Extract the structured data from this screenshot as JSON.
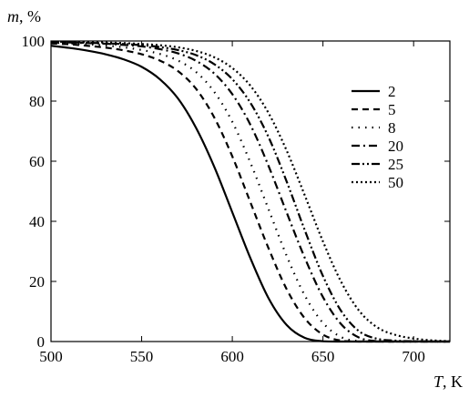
{
  "chart_data": {
    "type": "line",
    "title": "",
    "xlabel": "T, K",
    "ylabel": "m, %",
    "xlim": [
      500,
      720
    ],
    "ylim": [
      0,
      100
    ],
    "xticks": [
      500,
      550,
      600,
      650,
      700
    ],
    "yticks": [
      0,
      20,
      40,
      60,
      80,
      100
    ],
    "grid": false,
    "legend": "right",
    "x": [
      500,
      510,
      520,
      530,
      540,
      550,
      560,
      570,
      580,
      590,
      600,
      610,
      620,
      630,
      640,
      650,
      660,
      670,
      680,
      690,
      700,
      710,
      720
    ],
    "series": [
      {
        "name": "2",
        "style": "solid",
        "values": [
          98.4,
          97.7,
          96.8,
          95.6,
          93.9,
          91.4,
          87.3,
          80.9,
          71.1,
          58.2,
          43.0,
          27.7,
          14.4,
          5.5,
          1.2,
          0.1,
          0.0,
          0.0,
          0.0,
          0.0,
          0.0,
          0.0,
          0.0
        ]
      },
      {
        "name": "5",
        "style": "dashed",
        "values": [
          99.2,
          98.9,
          98.4,
          97.8,
          96.9,
          95.6,
          93.5,
          90.0,
          84.1,
          74.6,
          61.6,
          46.3,
          31.0,
          17.4,
          7.7,
          2.3,
          0.3,
          0.0,
          0.0,
          0.0,
          0.0,
          0.0,
          0.0
        ]
      },
      {
        "name": "8",
        "style": "dotted",
        "values": [
          99.4,
          99.2,
          98.9,
          98.5,
          97.9,
          97.0,
          95.7,
          93.5,
          89.7,
          83.1,
          73.1,
          59.5,
          44.0,
          28.5,
          15.3,
          6.2,
          1.5,
          0.1,
          0.0,
          0.0,
          0.0,
          0.0,
          0.0
        ]
      },
      {
        "name": "20",
        "style": "dashdot",
        "values": [
          99.6,
          99.5,
          99.3,
          99.1,
          98.7,
          98.2,
          97.3,
          95.9,
          93.4,
          89.2,
          82.3,
          72.1,
          58.4,
          42.9,
          27.8,
          14.8,
          5.8,
          1.3,
          0.1,
          0.0,
          0.0,
          0.0,
          0.0
        ]
      },
      {
        "name": "25",
        "style": "dashdotdot",
        "values": [
          99.6,
          99.5,
          99.4,
          99.2,
          99.0,
          98.6,
          98.0,
          97.0,
          95.3,
          92.3,
          87.3,
          79.4,
          68.0,
          53.2,
          37.0,
          21.8,
          10.2,
          3.4,
          0.9,
          0.3,
          0.1,
          0.0,
          0.0
        ]
      },
      {
        "name": "50",
        "style": "dense-dot",
        "values": [
          99.8,
          99.7,
          99.6,
          99.5,
          99.3,
          99.0,
          98.6,
          97.9,
          96.7,
          94.6,
          91.0,
          85.1,
          76.0,
          63.5,
          48.6,
          33.3,
          19.9,
          10.2,
          4.7,
          2.2,
          1.0,
          0.4,
          0.1
        ]
      }
    ]
  }
}
